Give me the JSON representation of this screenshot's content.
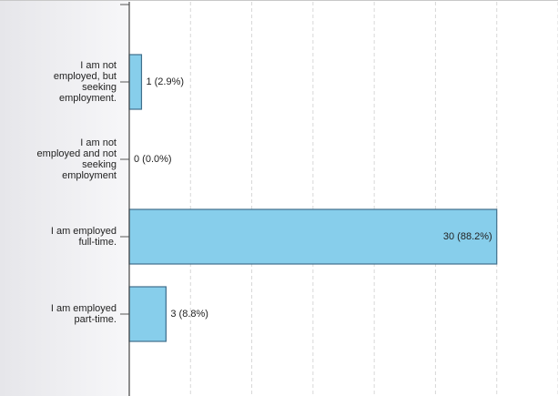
{
  "chart_data": {
    "type": "bar",
    "orientation": "horizontal",
    "categories": [
      "I am not employed, but seeking employment.",
      "I am not employed and not seeking employment",
      "I am employed full-time.",
      "I am employed part-time."
    ],
    "values": [
      1,
      0,
      30,
      3
    ],
    "value_labels": [
      "1 (2.9%)",
      "0 (0.0%)",
      "30 (88.2%)",
      "3 (8.8%)"
    ],
    "color": "#87ceeb",
    "xlim": [
      0,
      35
    ],
    "xticks": [
      0,
      5,
      10,
      15,
      20,
      25,
      30,
      35
    ],
    "grid": true
  }
}
